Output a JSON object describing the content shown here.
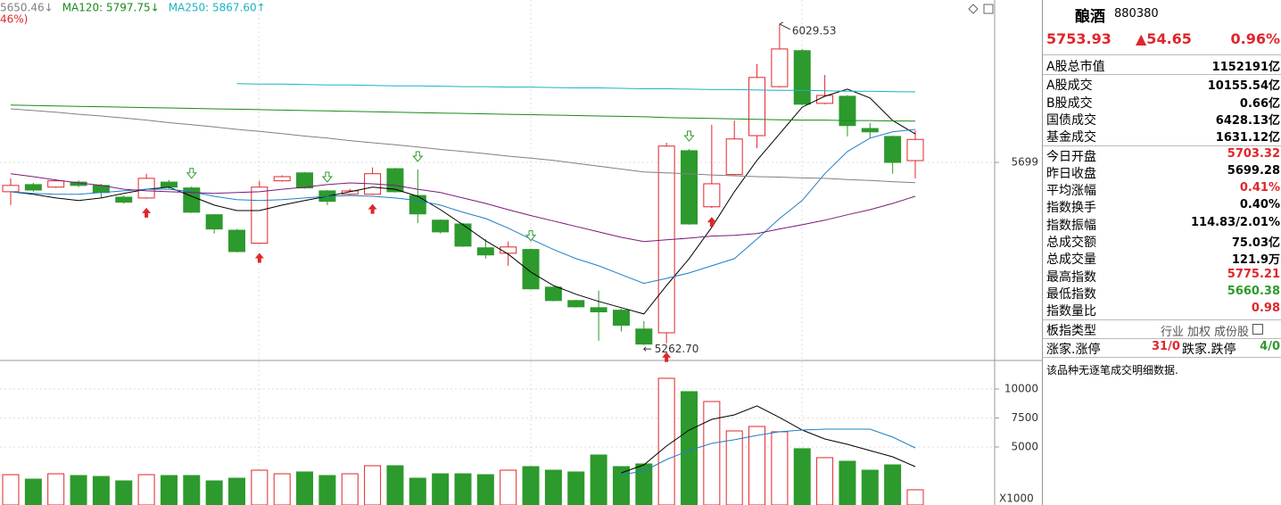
{
  "chart_data": [
    {
      "type": "candlestick",
      "categories": [
        null,
        null,
        null,
        null,
        null,
        null,
        null,
        null,
        null,
        null,
        null,
        null,
        null,
        null,
        null,
        null,
        null,
        null,
        null,
        null,
        null,
        null,
        null,
        null,
        null,
        null,
        null,
        null,
        null,
        null,
        null,
        null,
        null,
        null,
        null,
        null,
        null,
        null,
        null,
        null,
        null
      ],
      "open": [
        5629,
        5646,
        5640,
        5652,
        5644,
        5616,
        5614,
        5652,
        5638,
        5574,
        5537,
        5506,
        5655,
        5674,
        5631,
        5623,
        5623,
        5684,
        5620,
        5561,
        5552,
        5495,
        5482,
        5491,
        5401,
        5369,
        5352,
        5346,
        5301,
        5292,
        5727,
        5593,
        5670,
        5763,
        5880,
        5966,
        5840,
        5857,
        5780,
        5761,
        5703.32
      ],
      "high": [
        5661,
        5650,
        5659,
        5656,
        5648,
        5620,
        5672,
        5657,
        5642,
        5576,
        5540,
        5655,
        5668,
        5676,
        5633,
        5636,
        5687,
        5686,
        5682,
        5563,
        5555,
        5516,
        5510,
        5493,
        5403,
        5371,
        5393,
        5350,
        5320,
        5746,
        5731,
        5789,
        5799,
        5934,
        6029.53,
        5970,
        5908,
        5860,
        5793,
        5763,
        5775.21
      ],
      "low": [
        5597,
        5629,
        5638,
        5640,
        5614,
        5600,
        5612,
        5636,
        5578,
        5529,
        5484,
        5504,
        5653,
        5636,
        5597,
        5620,
        5621,
        5627,
        5554,
        5529,
        5497,
        5469,
        5452,
        5395,
        5367,
        5352,
        5273,
        5295,
        5262.7,
        5267,
        5550,
        5590,
        5668,
        5733,
        5878,
        5836,
        5838,
        5761,
        5757,
        5672,
        5660.38
      ],
      "close": [
        5644,
        5633,
        5655,
        5644,
        5627,
        5604,
        5661,
        5640,
        5580,
        5540,
        5486,
        5640,
        5665,
        5638,
        5606,
        5631,
        5672,
        5629,
        5576,
        5533,
        5499,
        5478,
        5497,
        5397,
        5369,
        5354,
        5342,
        5310,
        5265,
        5738,
        5552,
        5648,
        5755,
        5902,
        5970,
        5838,
        5859,
        5787,
        5772,
        5699,
        5753.93
      ],
      "up_color": "#e0262a",
      "down_color": "#2c9a2c",
      "series": [
        {
          "color": "#000000",
          "values": [
            5629,
            5623,
            5614,
            5608,
            5614,
            5625,
            5635,
            5640,
            5618,
            5597,
            5584,
            5584,
            5597,
            5608,
            5618,
            5629,
            5640,
            5635,
            5618,
            5586,
            5550,
            5512,
            5480,
            5437,
            5405,
            5384,
            5367,
            5352,
            5337,
            5405,
            5469,
            5544,
            5629,
            5704,
            5767,
            5831,
            5857,
            5874,
            5853,
            5799,
            5767
          ]
        },
        {
          "color": "#1e7fc8",
          "values": [
            5629,
            5625,
            5623,
            5623,
            5627,
            5631,
            5635,
            5635,
            5629,
            5618,
            5610,
            5608,
            5610,
            5614,
            5618,
            5620,
            5618,
            5614,
            5608,
            5597,
            5580,
            5565,
            5542,
            5516,
            5491,
            5469,
            5452,
            5431,
            5410,
            5422,
            5435,
            5452,
            5469,
            5516,
            5565,
            5608,
            5672,
            5725,
            5757,
            5772,
            5778
          ]
        },
        {
          "color": "#7a1a7a",
          "values": [
            5672,
            5665,
            5657,
            5650,
            5644,
            5635,
            5631,
            5629,
            5627,
            5625,
            5627,
            5629,
            5635,
            5640,
            5646,
            5650,
            5648,
            5644,
            5635,
            5627,
            5614,
            5601,
            5586,
            5572,
            5559,
            5546,
            5533,
            5520,
            5510,
            5514,
            5518,
            5523,
            5525,
            5529,
            5540,
            5550,
            5561,
            5574,
            5586,
            5601,
            5618
          ]
        },
        {
          "color": "#808080",
          "values": [
            5827,
            5823,
            5819,
            5814,
            5810,
            5805,
            5800,
            5794,
            5789,
            5784,
            5778,
            5773,
            5768,
            5762,
            5757,
            5751,
            5746,
            5741,
            5736,
            5730,
            5725,
            5720,
            5714,
            5709,
            5704,
            5697,
            5690,
            5683,
            5676,
            5674,
            5672,
            5669,
            5667,
            5665,
            5664,
            5662,
            5661,
            5658,
            5656,
            5653,
            5650.46
          ]
        },
        {
          "color": "#1a8a1a",
          "values": [
            5836,
            5835,
            5834,
            5833,
            5832,
            5831,
            5830,
            5829,
            5828,
            5827,
            5826,
            5825,
            5824,
            5823,
            5822,
            5821,
            5820,
            5819,
            5818,
            5817,
            5816,
            5815,
            5814,
            5813,
            5812,
            5811,
            5810,
            5809,
            5808,
            5806,
            5805,
            5804,
            5803,
            5802,
            5801,
            5800,
            5800,
            5799,
            5799,
            5798,
            5797.75
          ]
        },
        {
          "color": "#1ab4c4",
          "values": [
            null,
            null,
            null,
            null,
            null,
            null,
            null,
            null,
            null,
            null,
            5887,
            5886,
            5886,
            5885,
            5884,
            5884,
            5883,
            5882,
            5882,
            5881,
            5880,
            5880,
            5879,
            5879,
            5878,
            5877,
            5877,
            5876,
            5875,
            5875,
            5874,
            5873,
            5873,
            5872,
            5871,
            5871,
            5870,
            5869,
            5869,
            5868,
            5867.6
          ]
        }
      ],
      "legend": [
        {
          "text": "5650.46↓",
          "color": "#808080"
        },
        {
          "text": "MA120: 5797.75↓",
          "color": "#1a8a1a"
        },
        {
          "text": "MA250: 5867.60↑",
          "color": "#1ab4c4"
        }
      ],
      "subtitle": "46%)",
      "annotations": [
        {
          "text": "6029.53"
        },
        {
          "text": "5262.70"
        }
      ],
      "ylim": [
        5228,
        6087
      ],
      "yticks": [
        5699
      ],
      "grid": true
    },
    {
      "type": "bar",
      "categories": [
        null,
        null,
        null,
        null,
        null,
        null,
        null,
        null,
        null,
        null,
        null,
        null,
        null,
        null,
        null,
        null,
        null,
        null,
        null,
        null,
        null,
        null,
        null,
        null,
        null,
        null,
        null,
        null,
        null,
        null,
        null,
        null,
        null,
        null,
        null,
        null,
        null,
        null,
        null,
        null,
        null
      ],
      "values": [
        2615,
        2230,
        2690,
        2540,
        2460,
        2080,
        2615,
        2540,
        2540,
        2080,
        2310,
        3000,
        2690,
        2850,
        2540,
        2690,
        3385,
        3385,
        2310,
        2690,
        2690,
        2615,
        3000,
        3310,
        3000,
        2850,
        4310,
        3310,
        3540,
        10920,
        9770,
        8920,
        6385,
        6770,
        6310,
        4850,
        4080,
        3770,
        3000,
        3460,
        1310
      ],
      "series": [
        {
          "color": "#000000",
          "values": [
            null,
            null,
            null,
            null,
            null,
            null,
            null,
            null,
            null,
            null,
            null,
            null,
            null,
            null,
            null,
            null,
            null,
            null,
            null,
            null,
            null,
            null,
            null,
            null,
            null,
            null,
            null,
            2770,
            3460,
            5080,
            6460,
            7380,
            7770,
            8540,
            7540,
            6460,
            5690,
            5230,
            4690,
            4150,
            3310
          ]
        },
        {
          "color": "#1e7fc8",
          "values": [
            null,
            null,
            null,
            null,
            null,
            null,
            null,
            null,
            null,
            null,
            null,
            null,
            null,
            null,
            null,
            null,
            null,
            null,
            null,
            null,
            null,
            null,
            null,
            null,
            null,
            null,
            null,
            2615,
            2920,
            3920,
            4690,
            5310,
            5620,
            6000,
            6310,
            6460,
            6540,
            6540,
            6540,
            5850,
            4920
          ]
        }
      ],
      "unit_label": "X1000",
      "ylim": [
        0,
        12150
      ],
      "yticks": [
        5000,
        7500,
        10000
      ]
    }
  ],
  "panel": {
    "title": "酿酒",
    "code": "880380",
    "price": "5753.93",
    "change": "▲54.65",
    "percent": "0.96%",
    "rows": [
      {
        "label": "A股总市值",
        "value": "1152191亿",
        "color": "#000000"
      },
      {
        "label": "A股成交",
        "value": "10155.54亿",
        "color": "#000000"
      },
      {
        "label": "B股成交",
        "value": "0.66亿",
        "color": "#000000"
      },
      {
        "label": "国债成交",
        "value": "6428.13亿",
        "color": "#000000"
      },
      {
        "label": "基金成交",
        "value": "1631.12亿",
        "color": "#000000"
      },
      {
        "label": "今日开盘",
        "value": "5703.32",
        "color": "#e0262a"
      },
      {
        "label": "昨日收盘",
        "value": "5699.28",
        "color": "#000000"
      },
      {
        "label": "平均涨幅",
        "value": "0.41%",
        "color": "#e0262a"
      },
      {
        "label": "指数换手",
        "value": "0.40%",
        "color": "#000000"
      },
      {
        "label": "指数振幅",
        "value": "114.83/2.01%",
        "color": "#000000"
      },
      {
        "label": "总成交额",
        "value": "75.03亿",
        "color": "#000000"
      },
      {
        "label": "总成交量",
        "value": "121.9万",
        "color": "#000000"
      },
      {
        "label": "最高指数",
        "value": "5775.21",
        "color": "#e0262a"
      },
      {
        "label": "最低指数",
        "value": "5660.38",
        "color": "#2c9a2c"
      },
      {
        "label": "指数量比",
        "value": "0.98",
        "color": "#e0262a"
      }
    ],
    "type_label": "板指类型",
    "type_items": [
      "行业",
      "加权",
      "成份股"
    ],
    "up_label": "涨家.涨停",
    "up_value": "31/0",
    "down_label": "跌家.跌停",
    "down_value": "4/0",
    "note": "该品种无逐笔成交明细数据."
  }
}
